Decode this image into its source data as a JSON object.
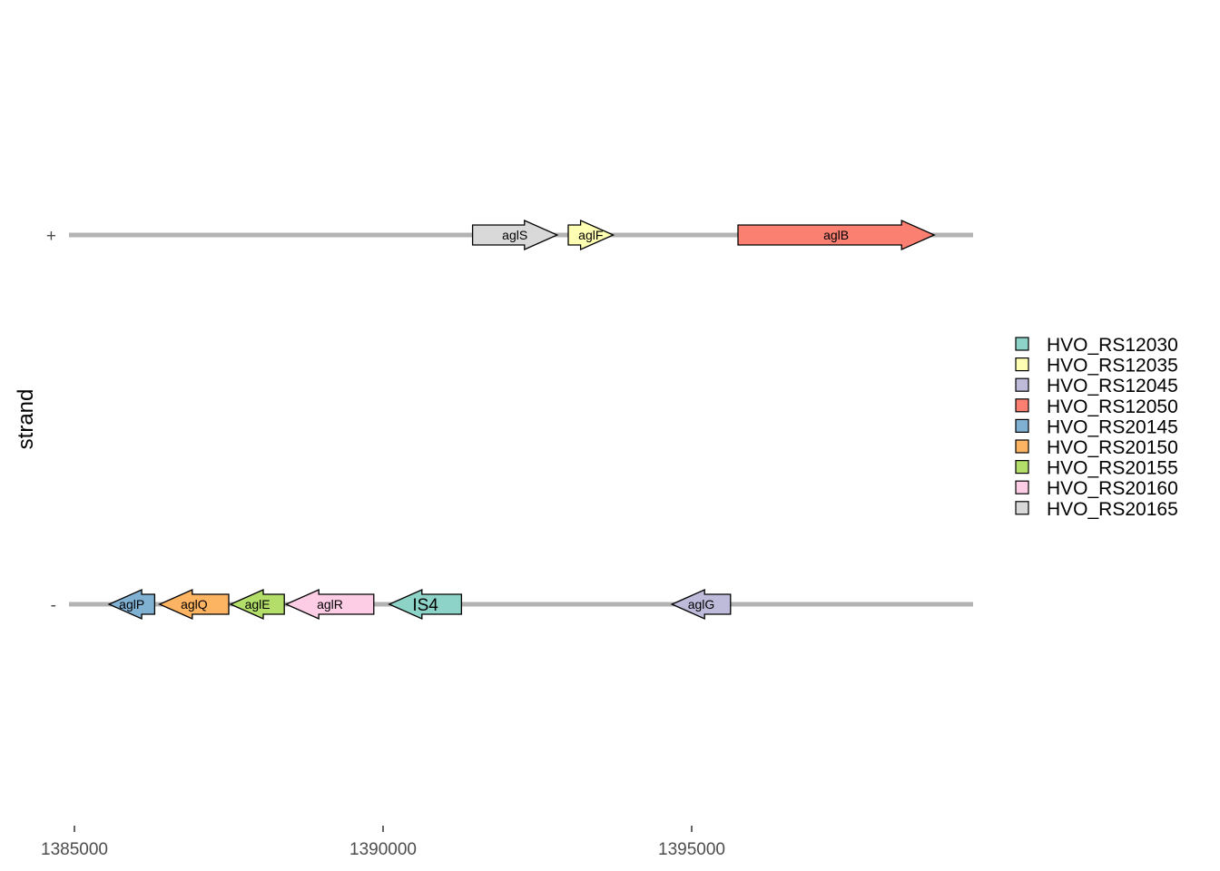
{
  "chart_data": {
    "type": "gene-arrow-map",
    "ylabel": "strand",
    "xlabel": "",
    "xlim": [
      1384800,
      1399500
    ],
    "x_ticks": [
      "1385000",
      "1390000",
      "1395000"
    ],
    "x_tick_values": [
      1385000,
      1390000,
      1395000
    ],
    "strands": [
      {
        "label": "+",
        "direction": 1
      },
      {
        "label": "-",
        "direction": -1
      }
    ],
    "genes": [
      {
        "name": "aglS",
        "id": "HVO_RS20165",
        "strand": "+",
        "start": 1391450,
        "end": 1392820,
        "label_size": "small"
      },
      {
        "name": "aglF",
        "id": "HVO_RS12035",
        "strand": "+",
        "start": 1393000,
        "end": 1393730,
        "label_size": "small"
      },
      {
        "name": "aglB",
        "id": "HVO_RS12050",
        "strand": "+",
        "start": 1395750,
        "end": 1398930,
        "label_size": "small"
      },
      {
        "name": "aglP",
        "id": "HVO_RS20145",
        "strand": "-",
        "start": 1386300,
        "end": 1385560,
        "label_size": "small"
      },
      {
        "name": "aglQ",
        "id": "HVO_RS20150",
        "strand": "-",
        "start": 1387500,
        "end": 1386380,
        "label_size": "small"
      },
      {
        "name": "aglE",
        "id": "HVO_RS20155",
        "strand": "-",
        "start": 1388400,
        "end": 1387530,
        "label_size": "small"
      },
      {
        "name": "aglR",
        "id": "HVO_RS20160",
        "strand": "-",
        "start": 1389850,
        "end": 1388430,
        "label_size": "small"
      },
      {
        "name": "IS4",
        "id": "HVO_RS12030",
        "strand": "-",
        "start": 1391270,
        "end": 1390100,
        "label_size": "large"
      },
      {
        "name": "aglG",
        "id": "HVO_RS12045",
        "strand": "-",
        "start": 1395630,
        "end": 1394680,
        "label_size": "small"
      }
    ],
    "legend": {
      "placement": "right",
      "entries": [
        {
          "label": "HVO_RS12030",
          "color": "#8DD3C7"
        },
        {
          "label": "HVO_RS12035",
          "color": "#FFFFB3"
        },
        {
          "label": "HVO_RS12045",
          "color": "#BEBADA"
        },
        {
          "label": "HVO_RS12050",
          "color": "#FB8072"
        },
        {
          "label": "HVO_RS20145",
          "color": "#80B1D3"
        },
        {
          "label": "HVO_RS20150",
          "color": "#FDB462"
        },
        {
          "label": "HVO_RS20155",
          "color": "#B3DE69"
        },
        {
          "label": "HVO_RS20160",
          "color": "#FCCDE5"
        },
        {
          "label": "HVO_RS20165",
          "color": "#D9D9D9"
        }
      ]
    },
    "colors": {
      "track_line": "#b3b3b3",
      "gene_outline": "#000000",
      "tick": "#333333"
    },
    "grid": false
  }
}
